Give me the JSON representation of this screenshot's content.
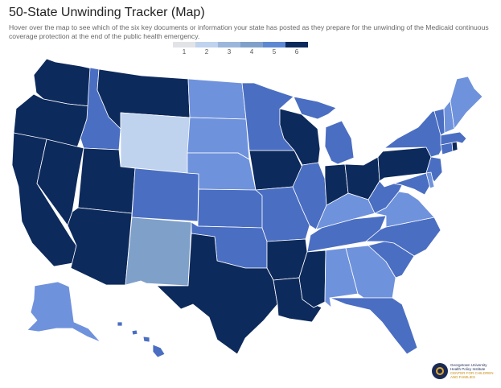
{
  "title": "50-State Unwinding Tracker (Map)",
  "subtitle": "Hover over the map to see which of the six key documents or information your state has posted as they prepare for the unwinding of the Medicaid continuous coverage protection at the end of the public health emergency.",
  "legend": [
    {
      "label": "1",
      "color": "#e2e3e6"
    },
    {
      "label": "2",
      "color": "#bfd2ee"
    },
    {
      "label": "3",
      "color": "#9bb6da"
    },
    {
      "label": "4",
      "color": "#7fa0c9"
    },
    {
      "label": "5",
      "color": "#5f88d2"
    },
    {
      "label": "6",
      "color": "#0d2a5c"
    }
  ],
  "colors": {
    "1": "#e2e3e6",
    "2": "#bfd2ee",
    "3": "#a9c3e1",
    "4": "#7fa0c9",
    "5": "#4a6ec2",
    "6": "#0d2a5c",
    "l5": "#6f92dc"
  },
  "logo": {
    "line1": "Georgetown University",
    "line2": "Health Policy Institute",
    "line3": "CENTER FOR CHILDREN",
    "line4": "AND FAMILIES"
  }
}
